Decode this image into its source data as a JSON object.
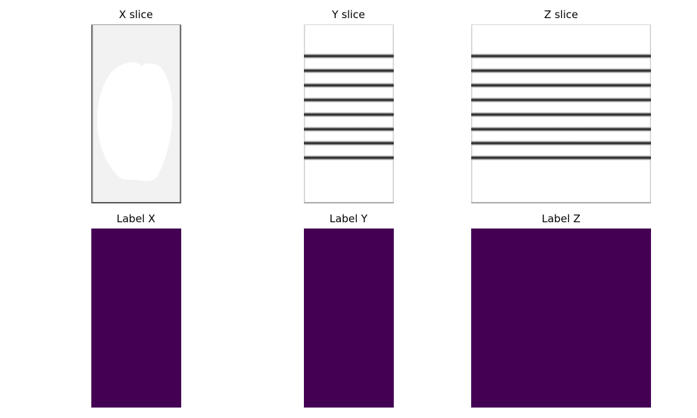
{
  "figure": {
    "panels": [
      {
        "id": "x-slice",
        "title": "X slice",
        "kind": "grayscale-image"
      },
      {
        "id": "y-slice",
        "title": "Y slice",
        "kind": "grayscale-image"
      },
      {
        "id": "z-slice",
        "title": "Z slice",
        "kind": "grayscale-image"
      },
      {
        "id": "label-x",
        "title": "Label X",
        "kind": "label-map"
      },
      {
        "id": "label-y",
        "title": "Label Y",
        "kind": "label-map"
      },
      {
        "id": "label-z",
        "title": "Label Z",
        "kind": "label-map"
      }
    ],
    "stripe_count": 8,
    "colors": {
      "label_fill": "#440154",
      "background": "#ffffff",
      "stripe": "#1a1a1a",
      "x_slice_background": "#f2f2f2",
      "x_slice_blob": "#ffffff"
    }
  }
}
